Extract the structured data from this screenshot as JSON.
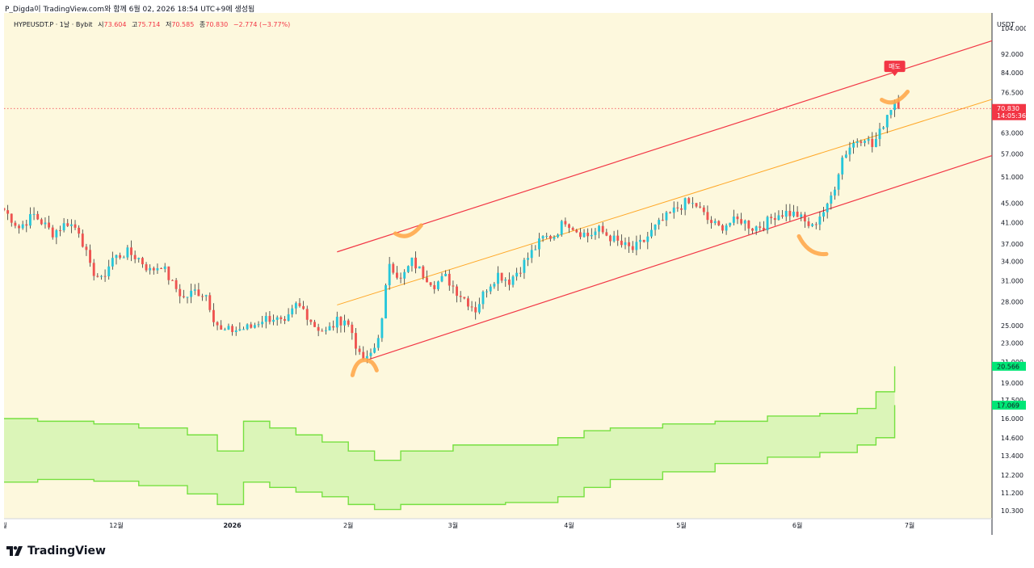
{
  "header": {
    "caption": "P_Digda이 TradingView.com와 함께 6월 02, 2026 18:54 UTC+9에 생성됨"
  },
  "legend": {
    "symbol": "HYPEUSDT.P · 1날 · Bybit",
    "open_label": "시",
    "open": "73.604",
    "high_label": "고",
    "high": "75.714",
    "low_label": "저",
    "low": "70.585",
    "close_label": "종",
    "close": "70.830",
    "change": "−2.774 (−3.77%)"
  },
  "chart_data": {
    "type": "candlestick",
    "currency_label": "USDT",
    "y_scale": "log",
    "ylim": [
      9.9,
      112
    ],
    "y_ticks": [
      "104.000",
      "92.000",
      "84.000",
      "76.500",
      "70.000",
      "63.000",
      "57.000",
      "51.000",
      "45.000",
      "41.000",
      "37.000",
      "34.000",
      "31.000",
      "28.000",
      "25.000",
      "23.000",
      "21.000",
      "19.000",
      "17.500",
      "16.000",
      "14.600",
      "13.400",
      "12.200",
      "11.200",
      "10.300"
    ],
    "x_ticks": [
      {
        "label": "월",
        "date": "2025-11-01"
      },
      {
        "label": "12월",
        "date": "2025-12-01"
      },
      {
        "label": "2026",
        "date": "2026-01-01"
      },
      {
        "label": "2월",
        "date": "2026-02-01"
      },
      {
        "label": "3월",
        "date": "2026-03-01"
      },
      {
        "label": "4월",
        "date": "2026-04-01"
      },
      {
        "label": "5월",
        "date": "2026-05-01"
      },
      {
        "label": "6월",
        "date": "2026-06-01"
      },
      {
        "label": "7월",
        "date": "2026-07-01"
      }
    ],
    "x_range": [
      "2025-11-01",
      "2026-07-23"
    ],
    "candle_path": [
      [
        "2025-11-01",
        43.5
      ],
      [
        "2025-11-05",
        40
      ],
      [
        "2025-11-09",
        42.5
      ],
      [
        "2025-11-14",
        39
      ],
      [
        "2025-11-18",
        41
      ],
      [
        "2025-11-21",
        39.5
      ],
      [
        "2025-11-24",
        33
      ],
      [
        "2025-11-27",
        31
      ],
      [
        "2025-11-30",
        34.5
      ],
      [
        "2025-12-04",
        35.5
      ],
      [
        "2025-12-07",
        34.5
      ],
      [
        "2025-12-10",
        32.5
      ],
      [
        "2025-12-13",
        33.5
      ],
      [
        "2025-12-16",
        30.5
      ],
      [
        "2025-12-19",
        28.5
      ],
      [
        "2025-12-22",
        29.5
      ],
      [
        "2025-12-25",
        29
      ],
      [
        "2025-12-27",
        26
      ],
      [
        "2025-12-29",
        24.3
      ],
      [
        "2026-01-02",
        24.5
      ],
      [
        "2026-01-06",
        24.8
      ],
      [
        "2026-01-09",
        25.8
      ],
      [
        "2026-01-12",
        26
      ],
      [
        "2026-01-15",
        25
      ],
      [
        "2026-01-18",
        27.5
      ],
      [
        "2026-01-20",
        27
      ],
      [
        "2026-01-23",
        25
      ],
      [
        "2026-01-26",
        24.2
      ],
      [
        "2026-01-29",
        25.5
      ],
      [
        "2026-01-31",
        25.8
      ],
      [
        "2026-02-02",
        24.2
      ],
      [
        "2026-02-04",
        21.5
      ],
      [
        "2026-02-06",
        21.2
      ],
      [
        "2026-02-08",
        22.5
      ],
      [
        "2026-02-10",
        25.5
      ],
      [
        "2026-02-12",
        34
      ],
      [
        "2026-02-15",
        31
      ],
      [
        "2026-02-18",
        34
      ],
      [
        "2026-02-21",
        32
      ],
      [
        "2026-02-24",
        30.5
      ],
      [
        "2026-02-27",
        31.5
      ],
      [
        "2026-03-02",
        29.5
      ],
      [
        "2026-03-05",
        28
      ],
      [
        "2026-03-07",
        27
      ],
      [
        "2026-03-10",
        30
      ],
      [
        "2026-03-13",
        32
      ],
      [
        "2026-03-16",
        31
      ],
      [
        "2026-03-19",
        33
      ],
      [
        "2026-03-22",
        35.5
      ],
      [
        "2026-03-25",
        38
      ],
      [
        "2026-03-28",
        38.5
      ],
      [
        "2026-03-31",
        41.5
      ],
      [
        "2026-04-03",
        39.5
      ],
      [
        "2026-04-06",
        38.5
      ],
      [
        "2026-04-09",
        39.5
      ],
      [
        "2026-04-12",
        38.2
      ],
      [
        "2026-04-15",
        36.8
      ],
      [
        "2026-04-18",
        36
      ],
      [
        "2026-04-21",
        37.5
      ],
      [
        "2026-04-24",
        40
      ],
      [
        "2026-04-27",
        42
      ],
      [
        "2026-04-30",
        44
      ],
      [
        "2026-05-02",
        45
      ],
      [
        "2026-05-05",
        44.5
      ],
      [
        "2026-05-08",
        41.5
      ],
      [
        "2026-05-11",
        40
      ],
      [
        "2026-05-14",
        41
      ],
      [
        "2026-05-17",
        41.5
      ],
      [
        "2026-05-20",
        40
      ],
      [
        "2026-05-23",
        40.5
      ],
      [
        "2026-05-26",
        42.5
      ],
      [
        "2026-05-29",
        43
      ],
      [
        "2026-06-01",
        42.5
      ],
      [
        "2026-06-03",
        41
      ],
      [
        "2026-06-05",
        40
      ],
      [
        "2026-06-07",
        42.5
      ],
      [
        "2026-06-09",
        44
      ],
      [
        "2026-06-11",
        49
      ],
      [
        "2026-06-13",
        56
      ],
      [
        "2026-06-15",
        59
      ],
      [
        "2026-06-17",
        61
      ],
      [
        "2026-06-19",
        62
      ],
      [
        "2026-06-21",
        59
      ],
      [
        "2026-06-23",
        63
      ],
      [
        "2026-06-25",
        69
      ],
      [
        "2026-06-27",
        73.6
      ],
      [
        "2026-06-28",
        70.83
      ]
    ],
    "channel": {
      "upper": {
        "from": [
          "2026-01-29",
          35.6
        ],
        "to": [
          "2026-07-23",
          98
        ]
      },
      "middle": {
        "from": [
          "2026-01-29",
          27.6
        ],
        "to": [
          "2026-07-23",
          74
        ]
      },
      "lower": {
        "from": [
          "2026-02-06",
          21.2
        ],
        "to": [
          "2026-07-23",
          56.5
        ]
      }
    },
    "band": {
      "upper_steps": [
        [
          "2025-11-01",
          16
        ],
        [
          "2025-11-10",
          15.8
        ],
        [
          "2025-11-25",
          15.6
        ],
        [
          "2025-12-07",
          15.3
        ],
        [
          "2025-12-20",
          14.8
        ],
        [
          "2025-12-28",
          13.7
        ],
        [
          "2026-01-04",
          15.8
        ],
        [
          "2026-01-11",
          15.3
        ],
        [
          "2026-01-18",
          14.8
        ],
        [
          "2026-01-25",
          14.3
        ],
        [
          "2026-02-01",
          13.7
        ],
        [
          "2026-02-08",
          13.1
        ],
        [
          "2026-02-15",
          13.7
        ],
        [
          "2026-03-01",
          14.1
        ],
        [
          "2026-03-15",
          14.1
        ],
        [
          "2026-03-29",
          14.6
        ],
        [
          "2026-04-05",
          15.1
        ],
        [
          "2026-04-12",
          15.3
        ],
        [
          "2026-04-26",
          15.6
        ],
        [
          "2026-05-10",
          15.8
        ],
        [
          "2026-05-24",
          16.2
        ],
        [
          "2026-06-07",
          16.4
        ],
        [
          "2026-06-17",
          16.8
        ],
        [
          "2026-06-22",
          18.2
        ],
        [
          "2026-06-27",
          20.566
        ]
      ],
      "lower_steps": [
        [
          "2025-11-01",
          11.8
        ],
        [
          "2025-11-10",
          11.95
        ],
        [
          "2025-11-25",
          11.85
        ],
        [
          "2025-12-07",
          11.6
        ],
        [
          "2025-12-20",
          11.15
        ],
        [
          "2025-12-28",
          10.6
        ],
        [
          "2026-01-04",
          11.8
        ],
        [
          "2026-01-11",
          11.5
        ],
        [
          "2026-01-18",
          11.25
        ],
        [
          "2026-01-25",
          11.0
        ],
        [
          "2026-02-01",
          10.6
        ],
        [
          "2026-02-08",
          10.35
        ],
        [
          "2026-02-15",
          10.6
        ],
        [
          "2026-03-01",
          10.6
        ],
        [
          "2026-03-15",
          10.7
        ],
        [
          "2026-03-29",
          11.0
        ],
        [
          "2026-04-05",
          11.5
        ],
        [
          "2026-04-12",
          11.95
        ],
        [
          "2026-04-26",
          12.4
        ],
        [
          "2026-05-10",
          12.9
        ],
        [
          "2026-05-24",
          13.3
        ],
        [
          "2026-06-07",
          13.6
        ],
        [
          "2026-06-17",
          14.1
        ],
        [
          "2026-06-22",
          14.6
        ],
        [
          "2026-06-27",
          17.069
        ]
      ]
    },
    "price_labels": [
      {
        "text": "70.830",
        "sub": "14:05:36",
        "value": 70.83,
        "color": "#f23645"
      },
      {
        "text": "20.566",
        "value": 20.566,
        "color": "#00e676"
      },
      {
        "text": "17.069",
        "value": 17.069,
        "color": "#00e676"
      }
    ],
    "marker": {
      "text": "매도",
      "date": "2026-06-27",
      "value": 86,
      "color": "#f23645"
    },
    "annotations": [
      {
        "kind": "smile",
        "date": "2026-02-06",
        "value": 20.8
      },
      {
        "kind": "frown",
        "date": "2026-02-17",
        "value": 39.5
      },
      {
        "kind": "smile-down",
        "date": "2026-06-04",
        "value": 37.2
      },
      {
        "kind": "frown",
        "date": "2026-06-27",
        "value": 75
      }
    ],
    "colors": {
      "background": "#fdf8dd",
      "up": "#26c6da",
      "down": "#ef5350",
      "channel_outer": "#f23645",
      "channel_mid": "#ffa726",
      "band_fill": "#dbf5b8",
      "band_line": "#76e040",
      "annotation": "#ffa94d"
    }
  },
  "brand": {
    "name": "TradingView",
    "icon": "tradingview-logo-icon"
  }
}
